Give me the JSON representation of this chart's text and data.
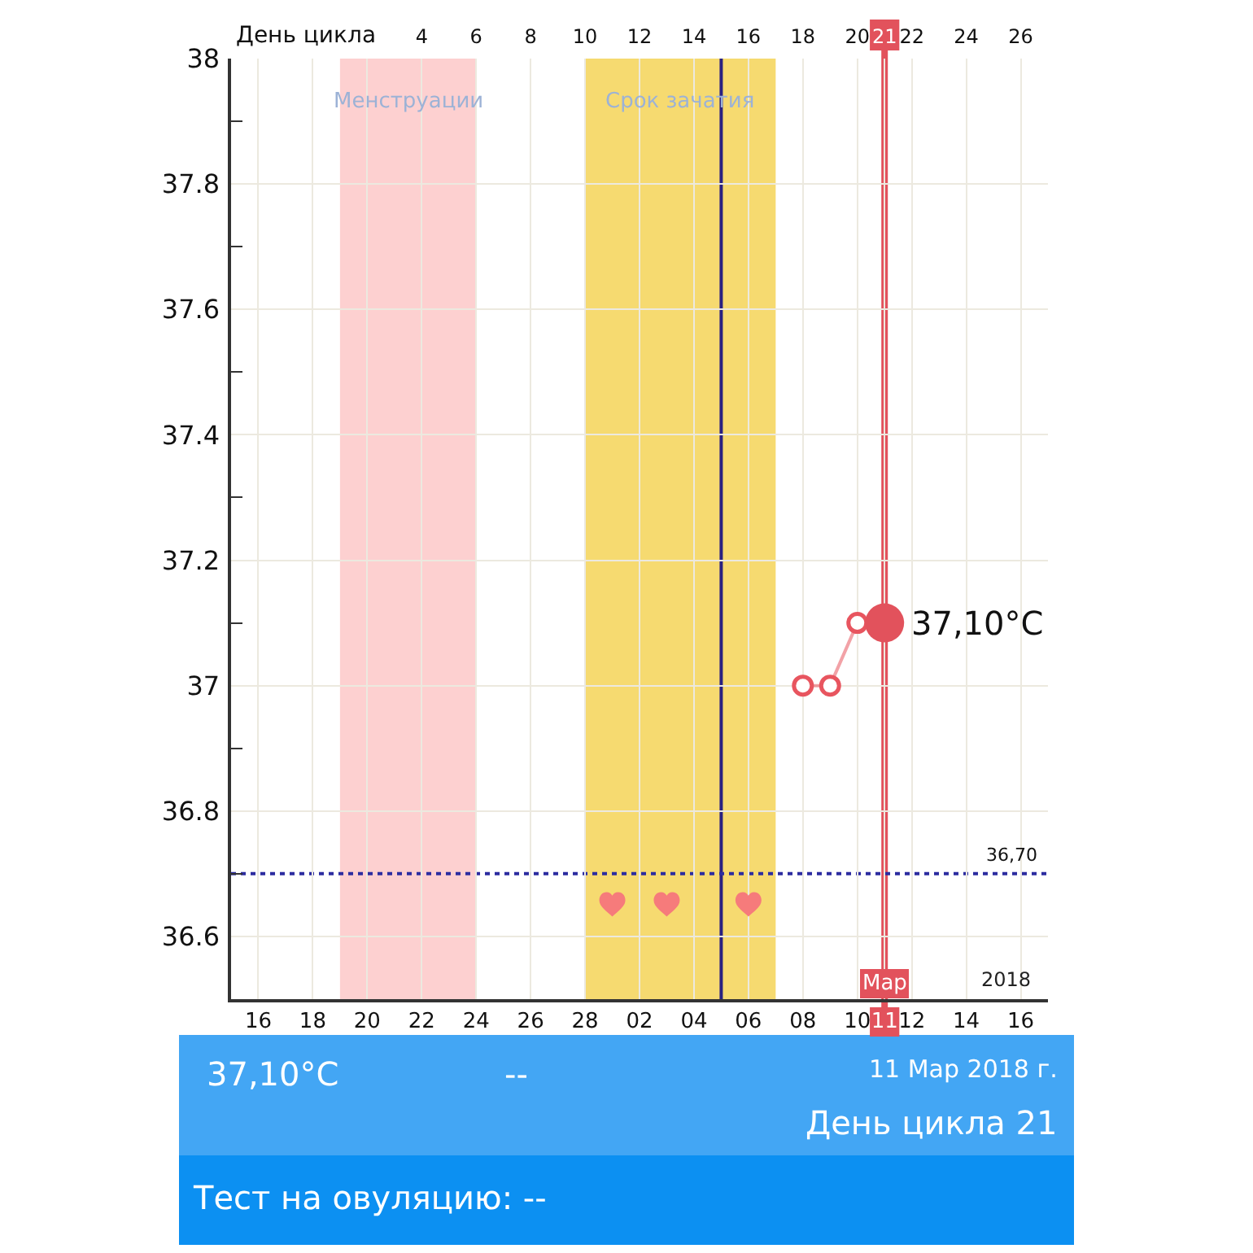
{
  "chart_data": {
    "type": "line",
    "x2label": "День цикла",
    "xlim": [
      "2018-02-15",
      "2018-03-17"
    ],
    "xticks": [
      {
        "value": "2018-02-16",
        "label": "16"
      },
      {
        "value": "2018-02-18",
        "label": "18"
      },
      {
        "value": "2018-02-20",
        "label": "20"
      },
      {
        "value": "2018-02-22",
        "label": "22"
      },
      {
        "value": "2018-02-24",
        "label": "24"
      },
      {
        "value": "2018-02-26",
        "label": "26"
      },
      {
        "value": "2018-02-28",
        "label": "28"
      },
      {
        "value": "2018-03-02",
        "label": "02"
      },
      {
        "value": "2018-03-04",
        "label": "04"
      },
      {
        "value": "2018-03-06",
        "label": "06"
      },
      {
        "value": "2018-03-08",
        "label": "08"
      },
      {
        "value": "2018-03-10",
        "label": "10"
      },
      {
        "value": "2018-03-11",
        "label": "11"
      },
      {
        "value": "2018-03-12",
        "label": "12"
      },
      {
        "value": "2018-03-14",
        "label": "14"
      },
      {
        "value": "2018-03-16",
        "label": "16"
      }
    ],
    "x2lim": [
      -3,
      27
    ],
    "x2ticks": [
      4,
      6,
      8,
      10,
      12,
      14,
      16,
      18,
      20,
      21,
      22,
      24,
      26
    ],
    "ylim": [
      36.5,
      38
    ],
    "yticks": [
      36.6,
      {
        "value": 36.7,
        "label": null
      },
      36.8,
      {
        "value": 36.9,
        "label": null
      },
      37,
      {
        "value": 37.1,
        "label": null
      },
      37.2,
      {
        "value": 37.3,
        "label": null
      },
      37.4,
      {
        "value": 37.5,
        "label": null
      },
      37.6,
      {
        "value": 37.7,
        "label": null
      },
      37.8,
      {
        "value": 37.9,
        "label": null
      },
      38
    ],
    "grid": true,
    "series": [
      {
        "x": [
          "2018-03-08",
          "2018-03-09",
          "2018-03-10",
          "2018-03-11"
        ],
        "values": [
          37.0,
          37.0,
          37.1,
          37.1
        ],
        "color": "#e8555f",
        "marker": "circle"
      },
      {
        "type": "scatter",
        "x": [
          "2018-03-11"
        ],
        "values": [
          37.1
        ],
        "color": "#e2525c",
        "marker": "circle"
      },
      {
        "type": "scatter",
        "x": [
          "2018-03-01",
          "2018-03-03",
          "2018-03-06"
        ],
        "values": [
          36.65,
          36.65,
          36.65
        ],
        "color": "#f67b7b"
      }
    ],
    "bands": [
      {
        "axis": "x",
        "from": "2018-02-19",
        "to": "2018-02-24",
        "label": "Менструации",
        "color": "#fdd0d0"
      },
      {
        "axis": "x",
        "from": "2018-02-28",
        "to": "2018-03-07",
        "label": "Срок зачатия",
        "color": "#f6da70"
      }
    ],
    "ref_lines": [
      {
        "axis": "x",
        "value": "2018-03-05",
        "color": "#2a2180"
      },
      {
        "axis": "x",
        "value": "2018-03-11",
        "label": "Мар",
        "color": "#e2525c"
      },
      {
        "axis": "y",
        "value": 36.7,
        "label": "36,70",
        "color": "#2c2ca0",
        "line_style": "dotted"
      }
    ],
    "annotations": [
      {
        "text": "37,10°C",
        "x": "2018-03-11",
        "y": 37.1
      },
      "2018",
      "37,10°C",
      "--",
      "11 Мар 2018 г.",
      "День цикла 21",
      "Тест на овуляцию: --"
    ]
  }
}
